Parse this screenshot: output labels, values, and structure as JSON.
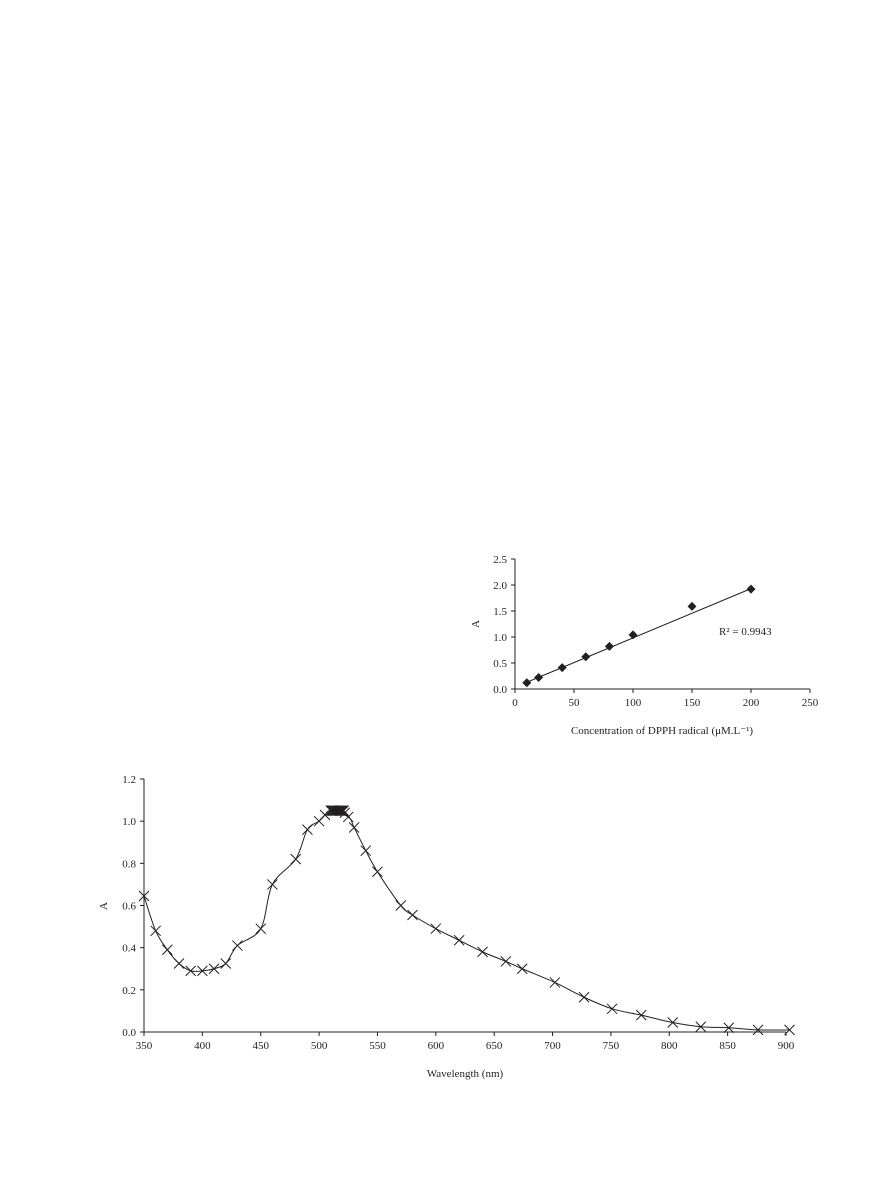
{
  "chart_data": [
    {
      "type": "scatter",
      "xlabel": "Concentration of DPPH radical (μM.L⁻¹)",
      "ylabel": "A",
      "xlim": [
        0,
        250
      ],
      "ylim": [
        0,
        2.5
      ],
      "xticks": [
        "0",
        "50",
        "100",
        "150",
        "200",
        "250"
      ],
      "yticks": [
        "0.0",
        "0.5",
        "1.0",
        "1.5",
        "2.0",
        "2.5"
      ],
      "marker": "diamond",
      "grid": false,
      "x": [
        10,
        20,
        40,
        60,
        80,
        100,
        150,
        200
      ],
      "y": [
        0.12,
        0.22,
        0.41,
        0.62,
        0.82,
        1.04,
        1.59,
        1.92
      ],
      "trendline": {
        "type": "linear",
        "x_range": [
          10,
          200
        ],
        "y_range": [
          0.13,
          1.93
        ]
      },
      "annotation": "R² = 0.9943"
    },
    {
      "type": "line",
      "xlabel": "Wavelength (nm)",
      "ylabel": "A",
      "xlim": [
        350,
        900
      ],
      "ylim": [
        0,
        1.2
      ],
      "xticks": [
        "350",
        "400",
        "450",
        "500",
        "550",
        "600",
        "650",
        "700",
        "750",
        "800",
        "850",
        "900"
      ],
      "yticks": [
        "0.0",
        "0.2",
        "0.4",
        "0.6",
        "0.8",
        "1.0",
        "1.2"
      ],
      "marker": "x",
      "grid": false,
      "x": [
        350,
        360,
        370,
        380,
        390,
        400,
        410,
        420,
        430,
        450,
        460,
        480,
        490,
        500,
        505,
        510,
        511,
        512,
        513,
        514,
        515,
        516,
        517,
        518,
        519,
        520,
        521,
        522,
        525,
        530,
        540,
        550,
        570,
        580,
        600,
        620,
        640,
        660,
        674,
        702,
        727,
        751,
        776,
        803,
        827,
        851,
        876,
        903
      ],
      "y": [
        0.645,
        0.48,
        0.39,
        0.325,
        0.29,
        0.29,
        0.3,
        0.325,
        0.41,
        0.49,
        0.7,
        0.82,
        0.96,
        1.0,
        1.03,
        1.05,
        1.05,
        1.05,
        1.05,
        1.05,
        1.05,
        1.05,
        1.05,
        1.05,
        1.05,
        1.05,
        1.05,
        1.04,
        1.02,
        0.97,
        0.86,
        0.76,
        0.6,
        0.555,
        0.49,
        0.435,
        0.38,
        0.335,
        0.3,
        0.235,
        0.165,
        0.11,
        0.08,
        0.045,
        0.025,
        0.02,
        0.01,
        0.01
      ]
    }
  ]
}
